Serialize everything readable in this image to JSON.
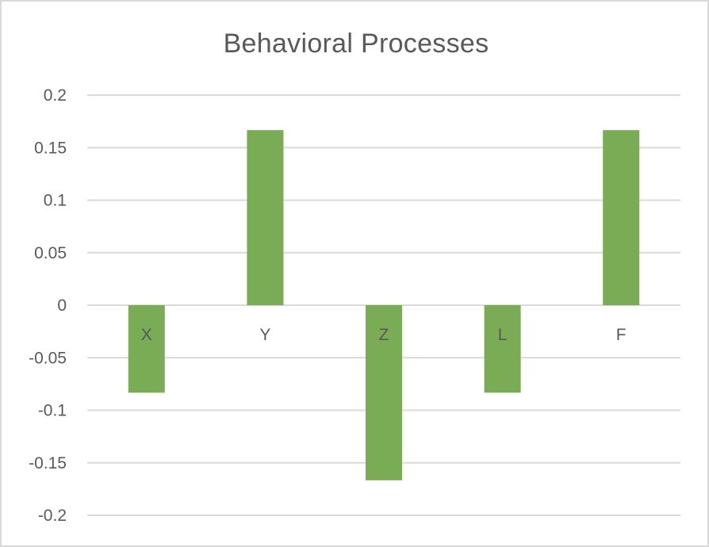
{
  "chart_data": {
    "type": "bar",
    "title": "Behavioral Processes",
    "categories": [
      "X",
      "Y",
      "Z",
      "L",
      "F"
    ],
    "values": [
      -0.0833,
      0.1667,
      -0.1667,
      -0.0833,
      0.1667
    ],
    "ylim": [
      -0.2,
      0.2
    ],
    "yticks": [
      0.2,
      0.15,
      0.1,
      0.05,
      0,
      -0.05,
      -0.1,
      -0.15,
      -0.2
    ],
    "ytick_labels": [
      "0.2",
      "0.15",
      "0.1",
      "0.05",
      "0",
      "-0.05",
      "-0.1",
      "-0.15",
      "-0.2"
    ],
    "bar_color": "#7aab55",
    "gridline_color": "#d9d9d9",
    "grid": true,
    "legend": "none",
    "xlabel": "",
    "ylabel": ""
  }
}
